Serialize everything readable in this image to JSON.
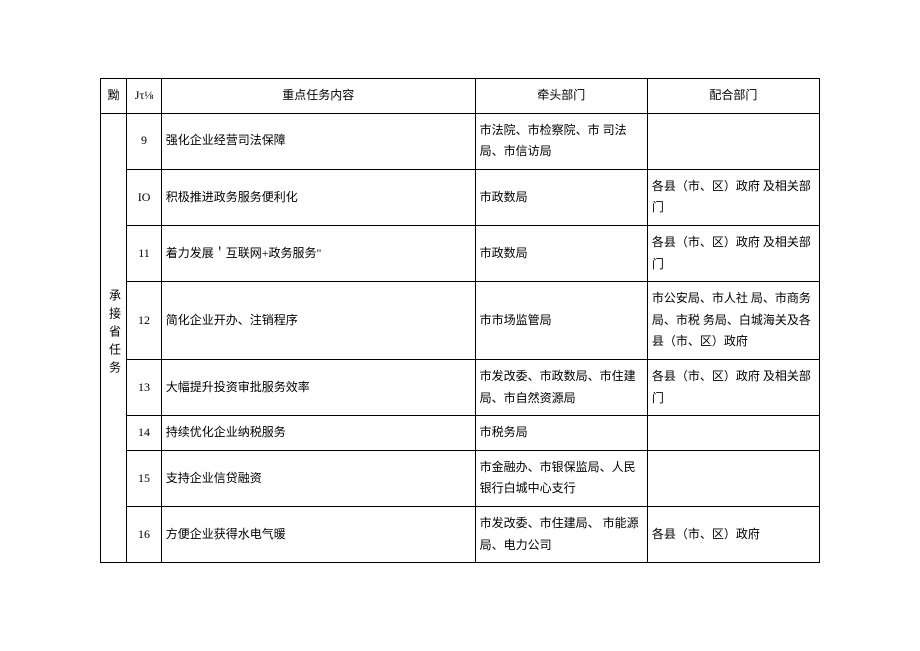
{
  "columns": {
    "a": "黝",
    "b": "Jτ⅛",
    "c": "重点任务内容",
    "d": "牵头部门",
    "e": "配合部门"
  },
  "group_label": "承接省任务",
  "rows": [
    {
      "num": "9",
      "task": "强化企业经营司法保障",
      "lead": "市法院、市检察院、市 司法局、市信访局",
      "coop": ""
    },
    {
      "num": "IO",
      "task": "积极推进政务服务便利化",
      "lead": "市政数局",
      "coop": "各县（市、区）政府 及相关部门"
    },
    {
      "num": "11",
      "task": "着力发展＇互联网+政务服务\"",
      "lead": "市政数局",
      "coop": "各县（市、区）政府 及相关部门"
    },
    {
      "num": "12",
      "task": "简化企业开办、注销程序",
      "lead": "市市场监管局",
      "coop": "市公安局、市人社 局、市商务局、市税 务局、白城海关及各 县（市、区）政府"
    },
    {
      "num": "13",
      "task": "大幅提升投资审批服务效率",
      "lead": "市发改委、市政数局、市住建局、市自然资源局",
      "coop": "各县（市、区）政府 及相关部门"
    },
    {
      "num": "14",
      "task": "持续优化企业纳税服务",
      "lead": "市税务局",
      "coop": ""
    },
    {
      "num": "15",
      "task": "支持企业信贷融资",
      "lead": "市金融办、市银保监局、人民银行白城中心支行",
      "coop": ""
    },
    {
      "num": "16",
      "task": "方便企业获得水电气暖",
      "lead": "市发改委、市住建局、 市能源局、电力公司",
      "coop": "各县（市、区）政府"
    }
  ]
}
